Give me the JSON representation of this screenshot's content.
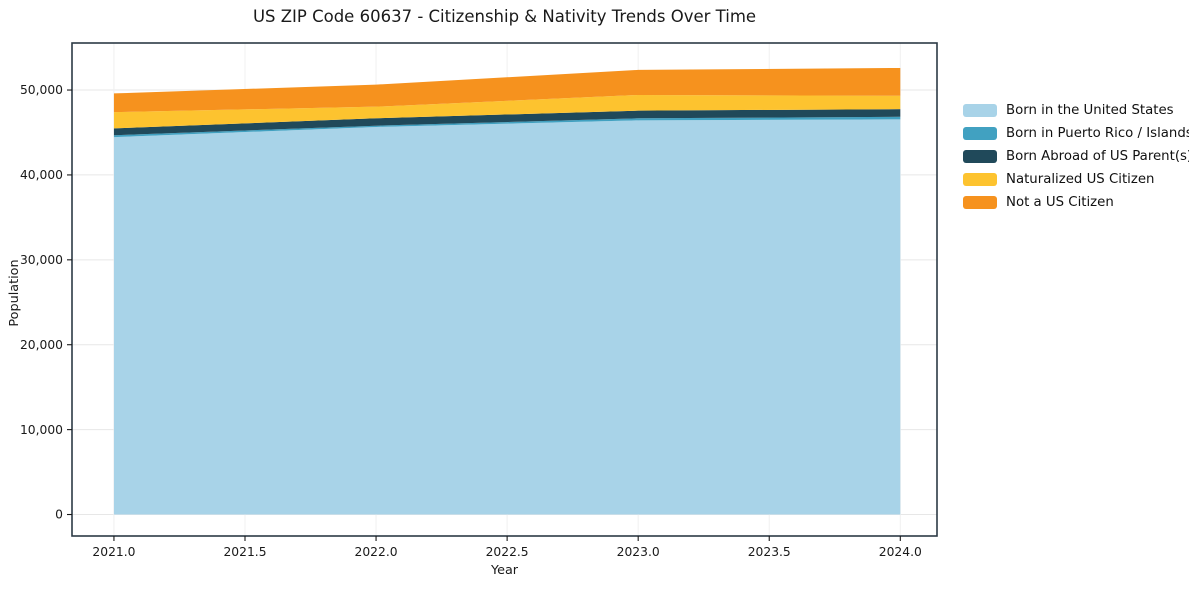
{
  "chart_data": {
    "type": "area",
    "stacked": true,
    "title": "US ZIP Code 60637 - Citizenship & Nativity Trends Over Time",
    "xlabel": "Year",
    "ylabel": "Population",
    "x": [
      2021,
      2022,
      2023,
      2024
    ],
    "series": [
      {
        "name": "Born in the United States",
        "color": "#a8d3e8",
        "values": [
          44450,
          45650,
          46430,
          46550
        ]
      },
      {
        "name": "Born in Puerto Rico / Islands",
        "color": "#41a1c1",
        "values": [
          230,
          150,
          240,
          300
        ]
      },
      {
        "name": "Born Abroad of US Parent(s)",
        "color": "#20495a",
        "values": [
          800,
          870,
          900,
          900
        ]
      },
      {
        "name": "Naturalized US Citizen",
        "color": "#fdc32f",
        "values": [
          1920,
          1370,
          1850,
          1570
        ]
      },
      {
        "name": "Not a US Citizen",
        "color": "#f6921e",
        "values": [
          2200,
          2600,
          2950,
          3280
        ]
      }
    ],
    "xticks": [
      2021.0,
      2021.5,
      2022.0,
      2022.5,
      2023.0,
      2023.5,
      2024.0
    ],
    "xtick_labels": [
      "2021.0",
      "2021.5",
      "2022.0",
      "2022.5",
      "2023.0",
      "2023.5",
      "2024.0"
    ],
    "yticks": [
      0,
      10000,
      20000,
      30000,
      40000,
      50000
    ],
    "ytick_labels": [
      "0",
      "10,000",
      "20,000",
      "30,000",
      "40,000",
      "50,000"
    ],
    "xlim": [
      2020.84,
      2024.14
    ],
    "ylim": [
      -2530,
      55540
    ],
    "grid": true,
    "legend_position": "outside-right",
    "colors": {
      "spine": "#2c3a45",
      "grid_horizontal": "#e7e7e7",
      "grid_vertical": "#f0f0f0",
      "text": "#1a1a1a"
    }
  }
}
